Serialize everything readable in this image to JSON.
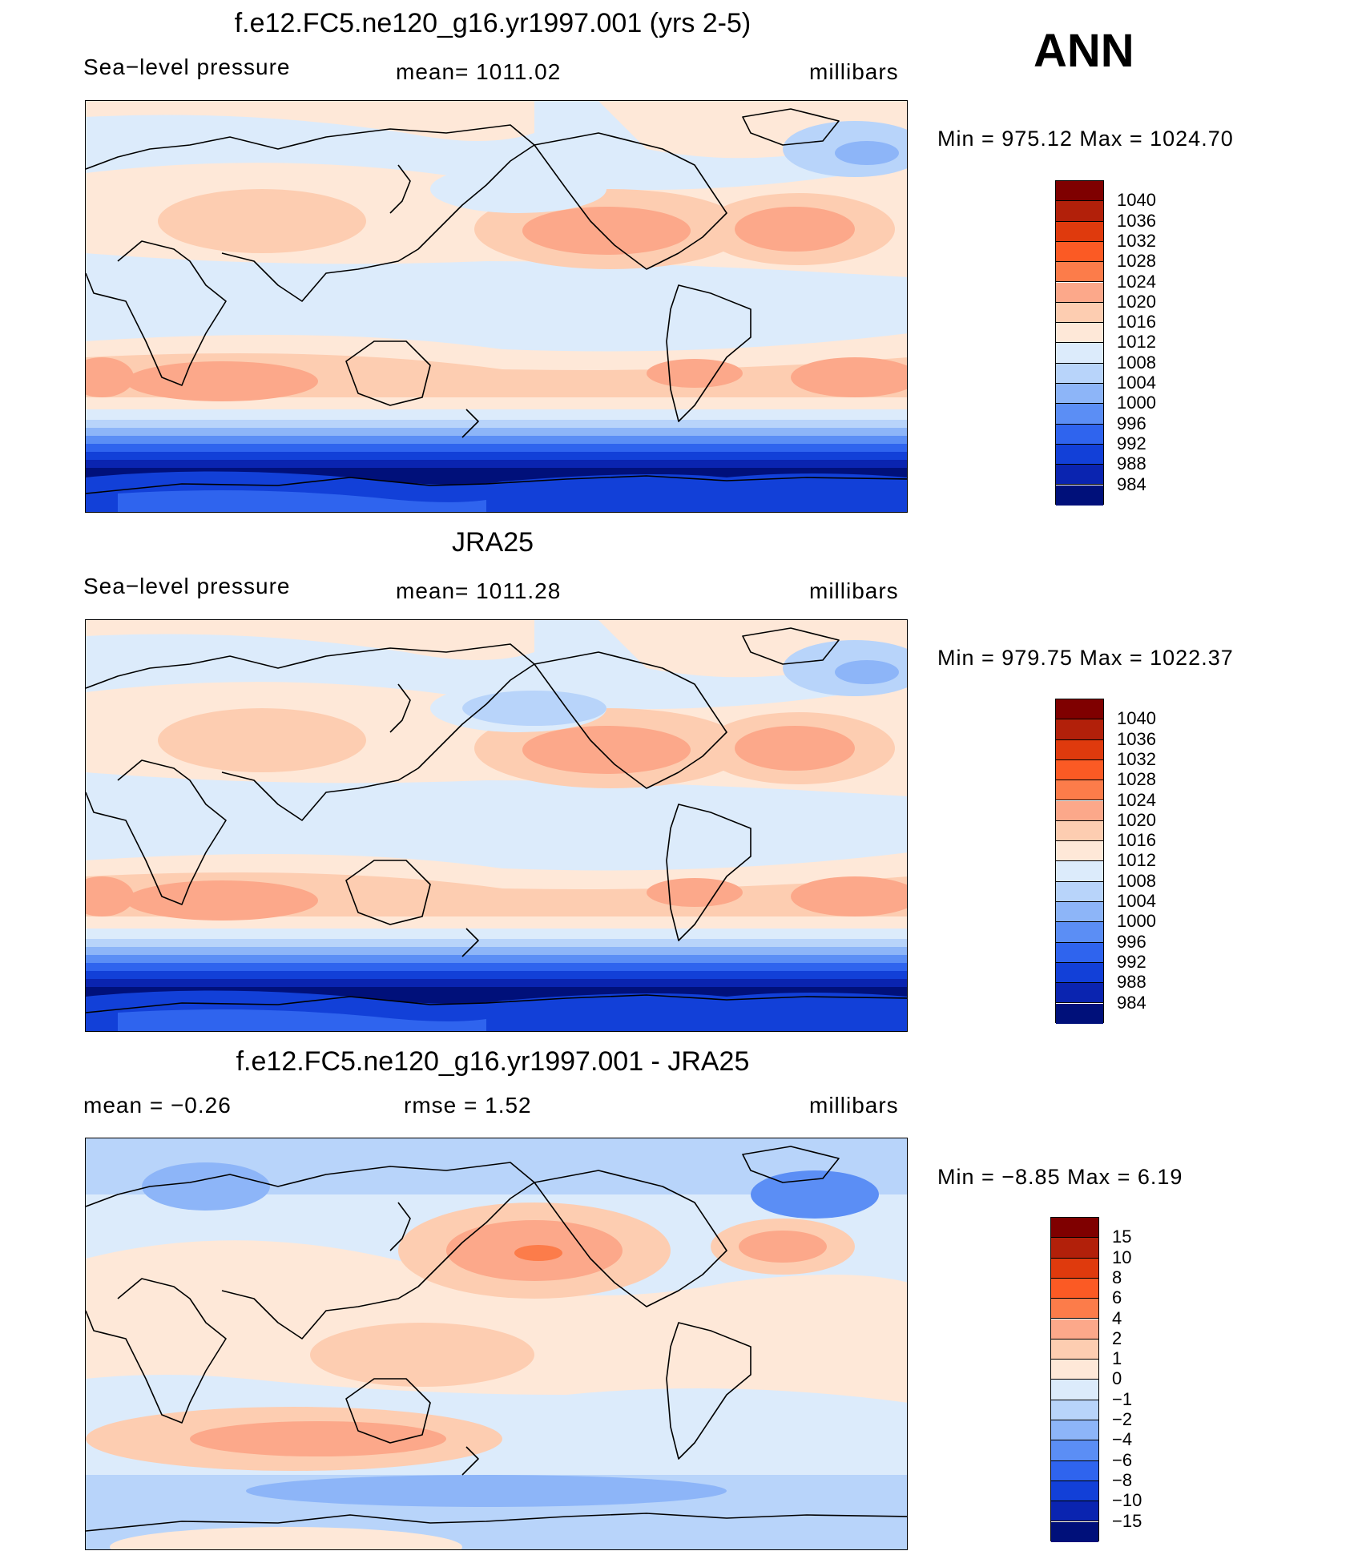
{
  "panels": [
    {
      "title": "f.e12.FC5.ne120_g16.yr1997.001 (yrs 2-5)",
      "left_label": "Sea−level pressure",
      "center_label": "mean=  1011.02",
      "right_label": "millibars",
      "minmax": "Min  =  975.12  Max  =  1024.70",
      "type": "model"
    },
    {
      "title": "JRA25",
      "left_label": "Sea−level pressure",
      "center_label": "mean=  1011.28",
      "right_label": "millibars",
      "minmax": "Min  =  979.75  Max  =  1022.37",
      "type": "obs"
    },
    {
      "title": "f.e12.FC5.ne120_g16.yr1997.001 - JRA25",
      "left_label": "mean  =    −0.26",
      "center_label": "rmse  =     1.52",
      "right_label": "millibars",
      "minmax": "Min  =   −8.85  Max  =      6.19",
      "type": "diff"
    }
  ],
  "season": "ANN",
  "colorbars": {
    "abs": {
      "labels": [
        "1040",
        "1036",
        "1032",
        "1028",
        "1024",
        "1020",
        "1016",
        "1012",
        "1008",
        "1004",
        "1000",
        "996",
        "992",
        "988",
        "984"
      ],
      "colors": [
        "#7f0000",
        "#b2200a",
        "#df3a0d",
        "#fb5a24",
        "#fc7c4a",
        "#fca88a",
        "#fdcdb1",
        "#fee8d8",
        "#dcebfb",
        "#b8d4fa",
        "#8db5f8",
        "#5b8ef5",
        "#2f64ee",
        "#1240d8",
        "#0a24b0",
        "#00107a"
      ]
    },
    "diff": {
      "labels": [
        "15",
        "10",
        "8",
        "6",
        "4",
        "2",
        "1",
        "0",
        "−1",
        "−2",
        "−4",
        "−6",
        "−8",
        "−10",
        "−15"
      ],
      "colors": [
        "#7f0000",
        "#b2200a",
        "#df3a0d",
        "#fb5a24",
        "#fc7c4a",
        "#fca88a",
        "#fdcdb1",
        "#fee8d8",
        "#dcebfb",
        "#b8d4fa",
        "#8db5f8",
        "#5b8ef5",
        "#2f64ee",
        "#1240d8",
        "#0a24b0",
        "#00107a"
      ]
    }
  }
}
